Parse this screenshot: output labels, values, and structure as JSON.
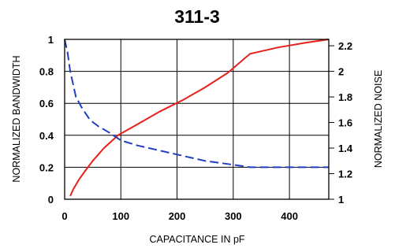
{
  "chart_data": {
    "type": "line",
    "title": "311-3",
    "xlabel": "CAPACITANCE IN pF",
    "ylabel_left": "NORMALIZED BANDWIDTH",
    "ylabel_right": "NORMALIZED NOISE",
    "xlim": [
      0,
      470
    ],
    "ylim_left": [
      0,
      1
    ],
    "ylim_right": [
      1,
      2.25
    ],
    "x_ticks": [
      "0",
      "100",
      "200",
      "300",
      "400"
    ],
    "y_left_ticks": [
      "0",
      "0.2",
      "0.4",
      "0.6",
      "0.8",
      "1"
    ],
    "y_right_ticks": [
      "1",
      "1.2",
      "1.4",
      "1.6",
      "1.8",
      "2",
      "2.2"
    ],
    "grid": true,
    "series": [
      {
        "axis": "left",
        "style": "solid",
        "color": "#e8201a",
        "x": [
          10,
          15,
          25,
          35,
          50,
          70,
          95,
          130,
          170,
          210,
          250,
          290,
          330,
          380,
          430,
          470
        ],
        "y": [
          0.02,
          0.06,
          0.12,
          0.17,
          0.24,
          0.32,
          0.4,
          0.47,
          0.55,
          0.62,
          0.7,
          0.79,
          0.91,
          0.95,
          0.98,
          1.0
        ]
      },
      {
        "axis": "right",
        "style": "dashed",
        "color": "#1f3fbf",
        "x": [
          0,
          5,
          10,
          20,
          30,
          45,
          60,
          80,
          100,
          130,
          160,
          200,
          250,
          300,
          330,
          380,
          430,
          470
        ],
        "y": [
          2.25,
          2.15,
          2.0,
          1.8,
          1.72,
          1.62,
          1.57,
          1.52,
          1.46,
          1.42,
          1.39,
          1.35,
          1.3,
          1.27,
          1.25,
          1.25,
          1.25,
          1.25
        ]
      }
    ]
  }
}
